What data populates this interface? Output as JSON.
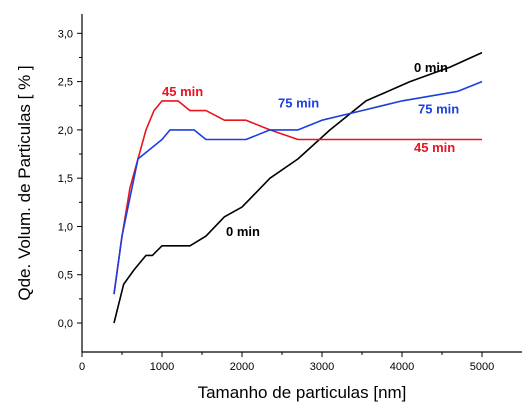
{
  "chart_data": {
    "type": "line",
    "title": "",
    "xlabel": "Tamanho de particulas [nm]",
    "ylabel": "Qde. Volum. de Particulas [ % ]",
    "xlim": [
      0,
      5500
    ],
    "ylim": [
      -0.3,
      3.2
    ],
    "x_ticks": [
      0,
      1000,
      2000,
      3000,
      4000,
      5000
    ],
    "x_tick_labels": [
      "0",
      "1000",
      "2000",
      "3000",
      "4000",
      "5000"
    ],
    "y_ticks": [
      0.0,
      0.5,
      1.0,
      1.5,
      2.0,
      2.5,
      3.0
    ],
    "y_tick_labels": [
      "0,0",
      "0,5",
      "1,0",
      "1,5",
      "2,0",
      "2,5",
      "3,0"
    ],
    "grid": false,
    "legend": "none",
    "series": [
      {
        "color": "#000000",
        "x": [
          400,
          520,
          650,
          800,
          880,
          1000,
          1150,
          1350,
          1550,
          1780,
          2000,
          2350,
          2700,
          3100,
          3550,
          4100,
          4600,
          5000
        ],
        "y": [
          0.0,
          0.4,
          0.55,
          0.7,
          0.7,
          0.8,
          0.8,
          0.8,
          0.9,
          1.1,
          1.2,
          1.5,
          1.7,
          2.0,
          2.3,
          2.5,
          2.65,
          2.8
        ]
      },
      {
        "color": "#e8141e",
        "x": [
          400,
          500,
          600,
          700,
          800,
          900,
          1000,
          1100,
          1200,
          1350,
          1550,
          1780,
          2050,
          2350,
          2700,
          3000,
          3500,
          4000,
          4500,
          5000
        ],
        "y": [
          0.3,
          0.9,
          1.4,
          1.7,
          2.0,
          2.2,
          2.3,
          2.3,
          2.3,
          2.2,
          2.2,
          2.1,
          2.1,
          2.0,
          1.9,
          1.9,
          1.9,
          1.9,
          1.9,
          1.9
        ]
      },
      {
        "color": "#1a3fe0",
        "x": [
          400,
          500,
          600,
          700,
          850,
          1000,
          1100,
          1200,
          1400,
          1550,
          1800,
          2050,
          2350,
          2700,
          3000,
          3500,
          4000,
          4700,
          5000
        ],
        "y": [
          0.3,
          0.9,
          1.3,
          1.7,
          1.8,
          1.9,
          2.0,
          2.0,
          2.0,
          1.9,
          1.9,
          1.9,
          2.0,
          2.0,
          2.1,
          2.2,
          2.3,
          2.4,
          2.5
        ]
      }
    ],
    "annotations": [
      {
        "text": "0 min",
        "color": "#000000",
        "x": 4150,
        "y": 2.6
      },
      {
        "text": "0 min",
        "color": "#000000",
        "x": 1800,
        "y": 0.9
      },
      {
        "text": "45 min",
        "color": "#e8141e",
        "x": 1000,
        "y": 2.35
      },
      {
        "text": "45 min",
        "color": "#e8141e",
        "x": 4150,
        "y": 1.77
      },
      {
        "text": "75 min",
        "color": "#1a3fe0",
        "x": 2450,
        "y": 2.23
      },
      {
        "text": "75 min",
        "color": "#1a3fe0",
        "x": 4200,
        "y": 2.17
      }
    ]
  }
}
